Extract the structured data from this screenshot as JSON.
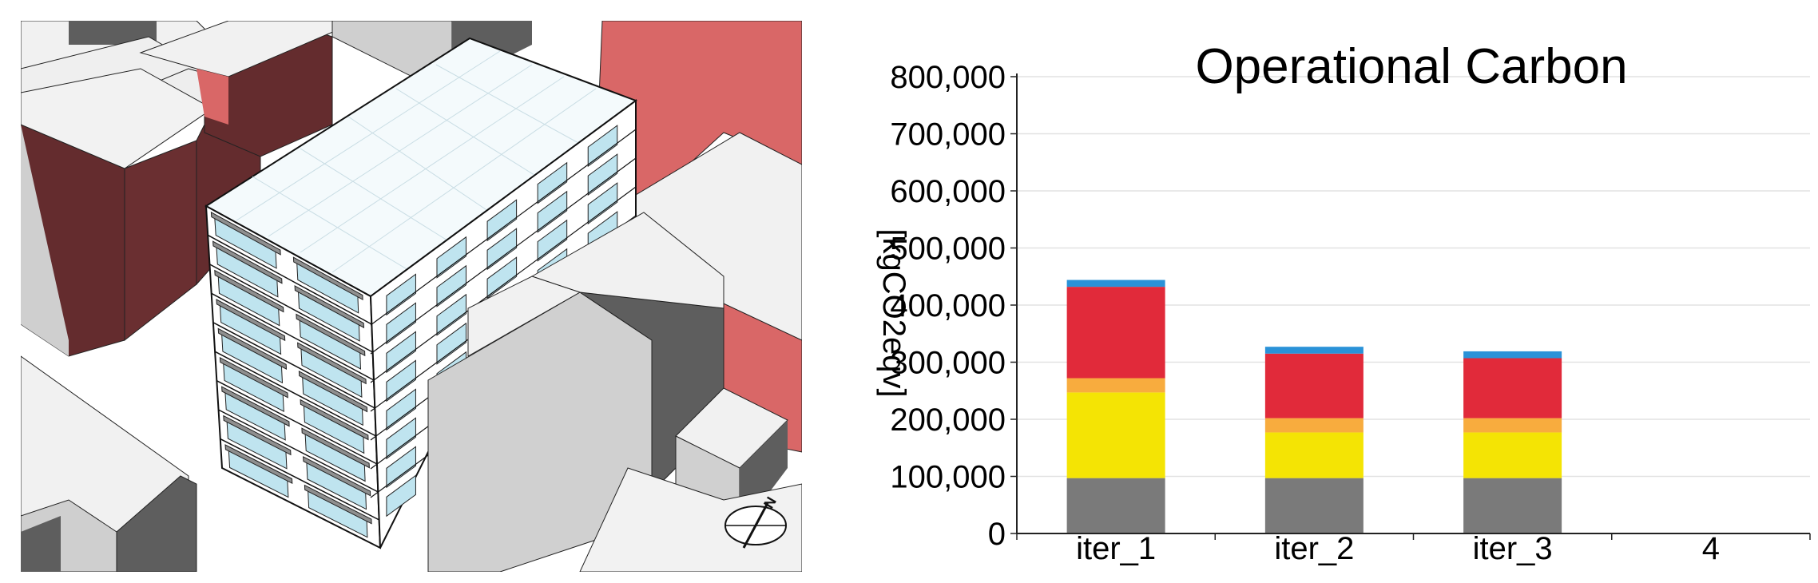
{
  "scene": {
    "description_icon": "north-arrow-icon",
    "north_label": "N",
    "colors": {
      "context_white": "#f1f1f1",
      "context_light": "#cfcfcf",
      "context_dark": "#5e5e5e",
      "neighbor_red_light": "#d96767",
      "neighbor_red_dark": "#642c2e",
      "glass": "#bfe4ef",
      "shade": "#8f8f8f"
    }
  },
  "chart_data": {
    "type": "bar",
    "stacked": true,
    "title": "Operational Carbon",
    "ylabel": "[kgCO2eqv]",
    "xlabel": "",
    "categories": [
      "iter_1",
      "iter_2",
      "iter_3",
      "4"
    ],
    "ylim": [
      0,
      800000
    ],
    "yticks": [
      "0",
      "100,000",
      "200,000",
      "300,000",
      "400,000",
      "500,000",
      "600,000",
      "700,000",
      "800,000"
    ],
    "ytick_values": [
      0,
      100000,
      200000,
      300000,
      400000,
      500000,
      600000,
      700000,
      800000
    ],
    "grid": true,
    "legend": "none",
    "series": [
      {
        "color": "#7a7a7a",
        "values": [
          97000,
          97000,
          97000,
          0
        ]
      },
      {
        "color": "#f4e404",
        "values": [
          150000,
          80000,
          80000,
          0
        ]
      },
      {
        "color": "#f8ac3e",
        "values": [
          25000,
          25000,
          25000,
          0
        ]
      },
      {
        "color": "#e12a3a",
        "values": [
          160000,
          113000,
          105000,
          0
        ]
      },
      {
        "color": "#2a92d8",
        "values": [
          12000,
          12000,
          12000,
          0
        ]
      }
    ]
  }
}
